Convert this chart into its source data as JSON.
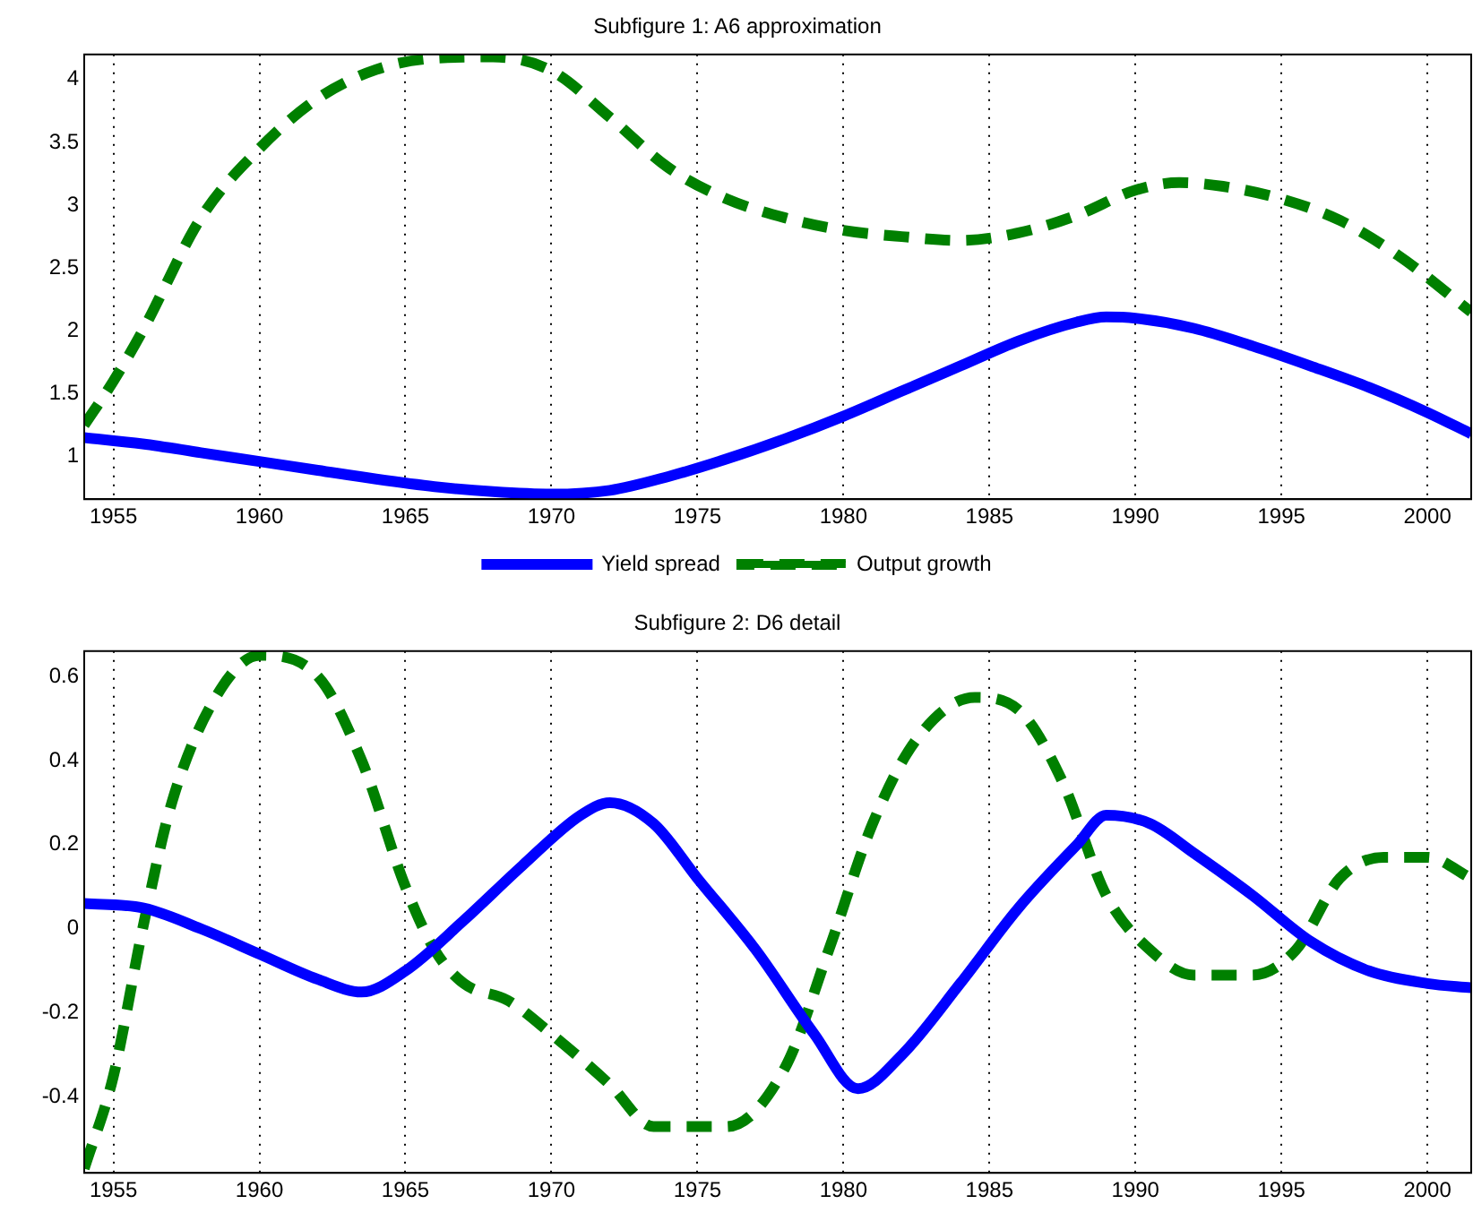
{
  "chart_data": [
    {
      "type": "line",
      "title": "Subfigure 1: A6 approximation",
      "xlim": [
        1954,
        2001.5
      ],
      "xticks": [
        1955,
        1960,
        1965,
        1970,
        1975,
        1980,
        1985,
        1990,
        1995,
        2000
      ],
      "ylim": [
        0.66,
        4.2
      ],
      "yticks": [
        1,
        1.5,
        2,
        2.5,
        3,
        3.5,
        4
      ],
      "grid": "x",
      "legend": "bottom",
      "marker": "none",
      "series": [
        {
          "name": "Yield spread",
          "color": "#0000ff",
          "line_style": "solid",
          "x": [
            1954,
            1956,
            1958,
            1960,
            1962,
            1964,
            1966,
            1968,
            1970,
            1972,
            1974,
            1976,
            1978,
            1980,
            1982,
            1984,
            1986,
            1988,
            1989,
            1990,
            1992,
            1994,
            1996,
            1998,
            2000,
            2001.5
          ],
          "values": [
            1.15,
            1.1,
            1.03,
            0.96,
            0.89,
            0.82,
            0.76,
            0.72,
            0.7,
            0.73,
            0.84,
            0.98,
            1.14,
            1.32,
            1.52,
            1.72,
            1.92,
            2.07,
            2.11,
            2.1,
            2.02,
            1.88,
            1.72,
            1.55,
            1.35,
            1.18
          ]
        },
        {
          "name": "Output growth",
          "color": "#008000",
          "line_style": "dashed",
          "x": [
            1954,
            1955,
            1956,
            1958,
            1960,
            1962,
            1964,
            1966,
            1968,
            1970,
            1972,
            1974,
            1976,
            1978,
            1980,
            1982,
            1984,
            1986,
            1988,
            1990,
            1991.5,
            1993,
            1995,
            1997,
            1999,
            2001.5
          ],
          "values": [
            1.25,
            1.6,
            2.0,
            2.9,
            3.45,
            3.85,
            4.08,
            4.17,
            4.18,
            4.07,
            3.7,
            3.3,
            3.05,
            2.9,
            2.8,
            2.75,
            2.72,
            2.78,
            2.92,
            3.12,
            3.18,
            3.15,
            3.05,
            2.88,
            2.6,
            2.15
          ]
        }
      ]
    },
    {
      "type": "line",
      "title": "Subfigure 2: D6 detail",
      "xlim": [
        1954,
        2001.5
      ],
      "xticks": [
        1955,
        1960,
        1965,
        1970,
        1975,
        1980,
        1985,
        1990,
        1995,
        2000
      ],
      "ylim": [
        -0.58,
        0.66
      ],
      "yticks": [
        -0.4,
        -0.2,
        0,
        0.2,
        0.4,
        0.6
      ],
      "grid": "x",
      "marker": "none",
      "series": [
        {
          "color": "#0000ff",
          "line_style": "solid",
          "x": [
            1954,
            1956,
            1958,
            1960,
            1962,
            1963.5,
            1965,
            1967,
            1969,
            1971,
            1972,
            1973.5,
            1975,
            1977,
            1979,
            1980.5,
            1982,
            1984,
            1986,
            1988,
            1989,
            1990.5,
            1992,
            1994,
            1996,
            1998,
            2000,
            2001.5
          ],
          "values": [
            0.06,
            0.05,
            0.0,
            -0.06,
            -0.12,
            -0.15,
            -0.1,
            0.02,
            0.15,
            0.27,
            0.3,
            0.25,
            0.12,
            -0.05,
            -0.25,
            -0.38,
            -0.3,
            -0.13,
            0.05,
            0.2,
            0.27,
            0.25,
            0.18,
            0.08,
            -0.03,
            -0.1,
            -0.13,
            -0.14
          ]
        },
        {
          "color": "#008000",
          "line_style": "dashed",
          "x": [
            1954,
            1955,
            1956,
            1957,
            1958.5,
            1960,
            1962,
            1963.5,
            1965,
            1966,
            1967,
            1968.5,
            1970,
            1972,
            1973.5,
            1976,
            1978,
            1979.5,
            1981,
            1982.5,
            1984.5,
            1986,
            1987.5,
            1989,
            1990.5,
            1992,
            1994,
            1995.5,
            1997,
            1998.5,
            2000,
            2001.5
          ],
          "values": [
            -0.57,
            -0.35,
            0.0,
            0.3,
            0.55,
            0.65,
            0.6,
            0.4,
            0.1,
            -0.05,
            -0.13,
            -0.17,
            -0.25,
            -0.37,
            -0.47,
            -0.47,
            -0.33,
            -0.05,
            0.25,
            0.45,
            0.55,
            0.52,
            0.35,
            0.08,
            -0.05,
            -0.11,
            -0.11,
            -0.05,
            0.12,
            0.17,
            0.17,
            0.12
          ]
        }
      ]
    }
  ]
}
